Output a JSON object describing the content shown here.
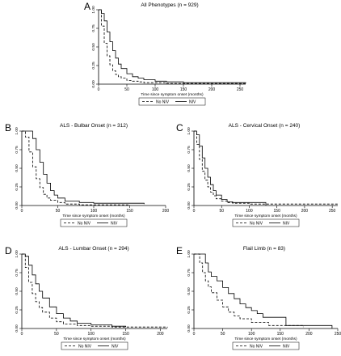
{
  "chart_data": [
    {
      "letter": "A",
      "type": "line",
      "title": "All Phenotypes (n = 929)",
      "xlabel": "Time since symptom onset (months)",
      "ylabel": "",
      "xlim": [
        0,
        260
      ],
      "ylim": [
        0,
        1
      ],
      "xticks": [
        "0",
        "50",
        "100",
        "150",
        "200",
        "250"
      ],
      "yticks": [
        "0.00",
        "0.25",
        "0.50",
        "0.75",
        "1.00"
      ],
      "legend": [
        "No NIV",
        "NIV"
      ],
      "legend_position": "bottom",
      "series": [
        {
          "name": "No NIV",
          "dash": true,
          "x": [
            0,
            5,
            10,
            15,
            20,
            25,
            30,
            35,
            40,
            50,
            60,
            70,
            80,
            100,
            120,
            150,
            200,
            260
          ],
          "y": [
            1,
            0.78,
            0.55,
            0.38,
            0.26,
            0.18,
            0.13,
            0.1,
            0.08,
            0.05,
            0.04,
            0.03,
            0.02,
            0.02,
            0.01,
            0.01,
            0.01,
            0.01
          ]
        },
        {
          "name": "NIV",
          "dash": false,
          "x": [
            0,
            5,
            10,
            15,
            20,
            25,
            30,
            35,
            40,
            50,
            60,
            70,
            80,
            100,
            120,
            150,
            200,
            260
          ],
          "y": [
            1,
            0.95,
            0.85,
            0.7,
            0.57,
            0.45,
            0.35,
            0.27,
            0.21,
            0.14,
            0.1,
            0.08,
            0.06,
            0.04,
            0.03,
            0.02,
            0.02,
            0.01
          ]
        }
      ]
    },
    {
      "letter": "B",
      "type": "line",
      "title": "ALS - Bulbar Onset (n = 312)",
      "xlabel": "Time since symptom onset (months)",
      "ylabel": "",
      "xlim": [
        0,
        200
      ],
      "ylim": [
        0,
        1
      ],
      "xticks": [
        "0",
        "50",
        "100",
        "150",
        "200"
      ],
      "yticks": [
        "0.00",
        "0.25",
        "0.50",
        "0.75",
        "1.00"
      ],
      "legend": [
        "No NIV",
        "NIV"
      ],
      "legend_position": "bottom",
      "series": [
        {
          "name": "No NIV",
          "dash": true,
          "x": [
            0,
            5,
            10,
            15,
            20,
            25,
            30,
            35,
            40,
            50,
            60,
            80,
            100,
            150
          ],
          "y": [
            1,
            0.92,
            0.72,
            0.52,
            0.36,
            0.24,
            0.15,
            0.1,
            0.07,
            0.04,
            0.02,
            0.01,
            0.01,
            0.0
          ]
        },
        {
          "name": "NIV",
          "dash": false,
          "x": [
            0,
            10,
            15,
            20,
            25,
            30,
            35,
            40,
            45,
            50,
            60,
            80,
            100,
            170
          ],
          "y": [
            1,
            1,
            0.9,
            0.75,
            0.58,
            0.42,
            0.3,
            0.2,
            0.14,
            0.1,
            0.06,
            0.04,
            0.03,
            0.02
          ]
        }
      ]
    },
    {
      "letter": "C",
      "type": "line",
      "title": "ALS - Cervical Onset (n = 240)",
      "xlabel": "Time since symptom onset (months)",
      "ylabel": "",
      "xlim": [
        0,
        260
      ],
      "ylim": [
        0,
        1
      ],
      "xticks": [
        "0",
        "50",
        "100",
        "150",
        "200",
        "250"
      ],
      "yticks": [
        "0.00",
        "0.25",
        "0.50",
        "0.75",
        "1.00"
      ],
      "legend": [
        "No NIV",
        "NIV"
      ],
      "legend_position": "bottom",
      "series": [
        {
          "name": "No NIV",
          "dash": true,
          "x": [
            0,
            5,
            10,
            15,
            20,
            25,
            30,
            35,
            40,
            50,
            60,
            70,
            100,
            150,
            260
          ],
          "y": [
            1,
            0.82,
            0.62,
            0.46,
            0.34,
            0.25,
            0.18,
            0.13,
            0.09,
            0.06,
            0.04,
            0.03,
            0.02,
            0.02,
            0.01
          ]
        },
        {
          "name": "NIV",
          "dash": false,
          "x": [
            0,
            5,
            10,
            15,
            20,
            25,
            30,
            35,
            40,
            50,
            60,
            70,
            80,
            100,
            130
          ],
          "y": [
            1,
            0.95,
            0.8,
            0.64,
            0.5,
            0.38,
            0.28,
            0.2,
            0.14,
            0.08,
            0.05,
            0.04,
            0.04,
            0.04,
            0.0
          ]
        }
      ]
    },
    {
      "letter": "D",
      "type": "line",
      "title": "ALS - Lumbar Onset (n = 294)",
      "xlabel": "Time since symptom onset (months)",
      "ylabel": "",
      "xlim": [
        0,
        210
      ],
      "ylim": [
        0,
        1
      ],
      "xticks": [
        "0",
        "50",
        "100",
        "150",
        "200"
      ],
      "yticks": [
        "0.00",
        "0.25",
        "0.50",
        "0.75",
        "1.00"
      ],
      "legend": [
        "No NIV",
        "NIV"
      ],
      "legend_position": "bottom",
      "series": [
        {
          "name": "No NIV",
          "dash": true,
          "x": [
            0,
            5,
            10,
            15,
            20,
            25,
            30,
            40,
            50,
            60,
            80,
            100,
            130,
            210
          ],
          "y": [
            1,
            0.82,
            0.62,
            0.47,
            0.36,
            0.28,
            0.22,
            0.14,
            0.09,
            0.06,
            0.04,
            0.03,
            0.02,
            0.01
          ]
        },
        {
          "name": "NIV",
          "dash": false,
          "x": [
            0,
            5,
            10,
            15,
            20,
            25,
            30,
            40,
            50,
            60,
            70,
            80,
            100,
            130,
            150
          ],
          "y": [
            1,
            0.97,
            0.85,
            0.72,
            0.6,
            0.5,
            0.41,
            0.29,
            0.2,
            0.14,
            0.1,
            0.07,
            0.05,
            0.03,
            0.02
          ]
        }
      ]
    },
    {
      "letter": "E",
      "type": "line",
      "title": "Flail Limb (n = 83)",
      "xlabel": "Time since symptom onset (months)",
      "ylabel": "",
      "xlim": [
        0,
        250
      ],
      "ylim": [
        0,
        1
      ],
      "xticks": [
        "0",
        "50",
        "100",
        "150",
        "200",
        "250"
      ],
      "yticks": [
        "0.00",
        "0.25",
        "0.50",
        "0.75",
        "1.00"
      ],
      "legend": [
        "No NIV",
        "NIV"
      ],
      "legend_position": "bottom",
      "series": [
        {
          "name": "No NIV",
          "dash": true,
          "x": [
            0,
            10,
            15,
            20,
            25,
            30,
            40,
            50,
            60,
            70,
            80,
            100,
            130,
            190
          ],
          "y": [
            1,
            0.88,
            0.75,
            0.64,
            0.56,
            0.48,
            0.38,
            0.29,
            0.22,
            0.17,
            0.13,
            0.08,
            0.04,
            0.02
          ]
        },
        {
          "name": "NIV",
          "dash": false,
          "x": [
            0,
            15,
            20,
            25,
            30,
            40,
            50,
            60,
            70,
            80,
            90,
            100,
            110,
            120,
            150,
            160,
            200,
            240
          ],
          "y": [
            1,
            1,
            0.88,
            0.76,
            0.7,
            0.64,
            0.55,
            0.47,
            0.4,
            0.33,
            0.28,
            0.24,
            0.2,
            0.15,
            0.15,
            0.04,
            0.04,
            0.0
          ]
        }
      ]
    }
  ]
}
